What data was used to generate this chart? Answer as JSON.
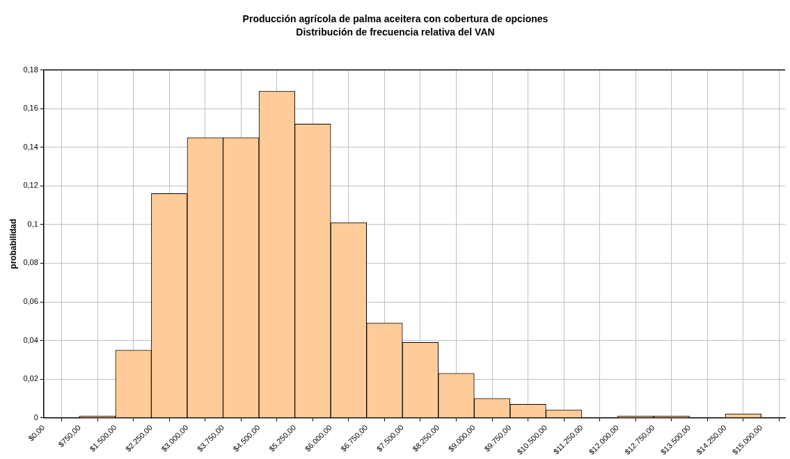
{
  "chart_data": {
    "type": "histogram",
    "title": "Producción agrícola de palma aceitera con cobertura de opciones",
    "subtitle": "Distribución de frecuencia relativa del VAN",
    "ylabel": "probabilidad",
    "bins": [
      750,
      1500,
      2250,
      3000,
      3750,
      4500,
      5250,
      6000,
      6750,
      7500,
      8250,
      9000,
      9750,
      10500,
      11250,
      12000,
      12750,
      13500,
      14250,
      15000
    ],
    "values": [
      0.001,
      0.035,
      0.116,
      0.145,
      0.145,
      0.169,
      0.152,
      0.101,
      0.049,
      0.039,
      0.023,
      0.01,
      0.007,
      0.004,
      0,
      0.001,
      0.001,
      0,
      0.002
    ],
    "color": "#ffcc99",
    "xlim": [
      0,
      15500
    ],
    "xticks": [
      {
        "value": 0,
        "label": "$0,00"
      },
      {
        "value": 750,
        "label": "$750,00"
      },
      {
        "value": 1500,
        "label": "$1.500,00"
      },
      {
        "value": 2250,
        "label": "$2.250,00"
      },
      {
        "value": 3000,
        "label": "$3.000,00"
      },
      {
        "value": 3750,
        "label": "$3.750,00"
      },
      {
        "value": 4500,
        "label": "$4.500,00"
      },
      {
        "value": 5250,
        "label": "$5.250,00"
      },
      {
        "value": 6000,
        "label": "$6.000,00"
      },
      {
        "value": 6750,
        "label": "$6.750,00"
      },
      {
        "value": 7500,
        "label": "$7.500,00"
      },
      {
        "value": 8250,
        "label": "$8.250,00"
      },
      {
        "value": 9000,
        "label": "$9.000,00"
      },
      {
        "value": 9750,
        "label": "$9.750,00"
      },
      {
        "value": 10500,
        "label": "$10.500,00"
      },
      {
        "value": 11250,
        "label": "$11.250,00"
      },
      {
        "value": 12000,
        "label": "$12.000,00"
      },
      {
        "value": 12750,
        "label": "$12.750,00"
      },
      {
        "value": 13500,
        "label": "$13.500,00"
      },
      {
        "value": 14250,
        "label": "$14.250,00"
      },
      {
        "value": 15000,
        "label": "$15.000,00"
      }
    ],
    "ylim": [
      0,
      0.18
    ],
    "yticks": [
      0,
      {
        "value": 0.02,
        "label": "0,02"
      },
      {
        "value": 0.04,
        "label": "0,04"
      },
      {
        "value": 0.06,
        "label": "0,06"
      },
      {
        "value": 0.08,
        "label": "0,08"
      },
      {
        "value": 0.1,
        "label": "0,1"
      },
      {
        "value": 0.12,
        "label": "0,12"
      },
      {
        "value": 0.14,
        "label": "0,14"
      },
      {
        "value": 0.16,
        "label": "0,16"
      },
      {
        "value": 0.18,
        "label": "0,18"
      }
    ],
    "grid": true
  }
}
